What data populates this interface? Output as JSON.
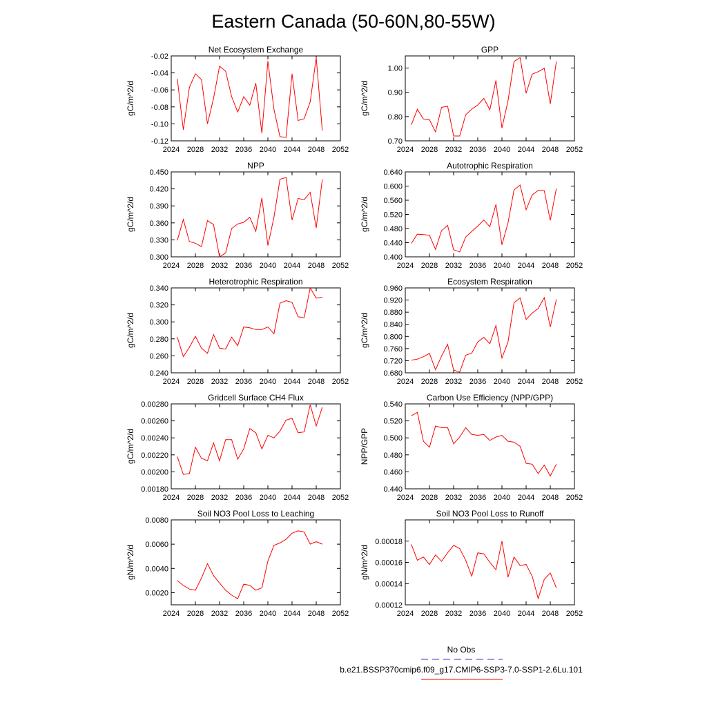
{
  "title": "Eastern Canada (50-60N,80-55W)",
  "colors": {
    "series": "#ff0000",
    "obs": "#3333cc",
    "axis": "#000000"
  },
  "legend": [
    {
      "label": "No Obs",
      "style": "dashed",
      "color": "#3333cc"
    },
    {
      "label": "b.e21.BSSP370cmip6.f09_g17.CMIP6-SSP3-7.0-SSP1-2.6Lu.101",
      "style": "solid",
      "color": "#ff0000"
    }
  ],
  "chart_data": [
    {
      "type": "line",
      "title": "Net Ecosystem Exchange",
      "ylabel": "gC/m^2/d",
      "xlim": [
        2024,
        2052
      ],
      "xticks": [
        2024,
        2028,
        2032,
        2036,
        2040,
        2044,
        2048,
        2052
      ],
      "ylim": [
        -0.12,
        -0.02
      ],
      "yticks": [
        "-0.12",
        "-0.10",
        "-0.08",
        "-0.06",
        "-0.04",
        "-0.02"
      ],
      "x": [
        2025,
        2026,
        2027,
        2028,
        2029,
        2030,
        2031,
        2032,
        2033,
        2034,
        2035,
        2036,
        2037,
        2038,
        2039,
        2040,
        2041,
        2042,
        2043,
        2044,
        2045,
        2046,
        2047,
        2048,
        2049
      ],
      "values": [
        -0.047,
        -0.107,
        -0.057,
        -0.041,
        -0.048,
        -0.1,
        -0.07,
        -0.032,
        -0.038,
        -0.068,
        -0.086,
        -0.068,
        -0.078,
        -0.052,
        -0.111,
        -0.026,
        -0.083,
        -0.115,
        -0.116,
        -0.041,
        -0.096,
        -0.094,
        -0.074,
        -0.022,
        -0.108
      ]
    },
    {
      "type": "line",
      "title": "GPP",
      "ylabel": "gC/m^2/d",
      "xlim": [
        2024,
        2052
      ],
      "xticks": [
        2024,
        2028,
        2032,
        2036,
        2040,
        2044,
        2048,
        2052
      ],
      "ylim": [
        0.7,
        1.05
      ],
      "yticks": [
        "0.70",
        "0.80",
        "0.90",
        "1.00"
      ],
      "x": [
        2025,
        2026,
        2027,
        2028,
        2029,
        2030,
        2031,
        2032,
        2033,
        2034,
        2035,
        2036,
        2037,
        2038,
        2039,
        2040,
        2041,
        2042,
        2043,
        2044,
        2045,
        2046,
        2047,
        2048,
        2049
      ],
      "values": [
        0.766,
        0.83,
        0.79,
        0.787,
        0.737,
        0.838,
        0.843,
        0.72,
        0.72,
        0.807,
        0.831,
        0.848,
        0.875,
        0.828,
        0.949,
        0.753,
        0.865,
        1.027,
        1.043,
        0.896,
        0.975,
        0.985,
        0.999,
        0.852,
        1.027
      ]
    },
    {
      "type": "line",
      "title": "NPP",
      "ylabel": "gC/m^2/d",
      "xlim": [
        2024,
        2052
      ],
      "xticks": [
        2024,
        2028,
        2032,
        2036,
        2040,
        2044,
        2048,
        2052
      ],
      "ylim": [
        0.3,
        0.45
      ],
      "yticks": [
        "0.300",
        "0.330",
        "0.360",
        "0.390",
        "0.420",
        "0.450"
      ],
      "x": [
        2025,
        2026,
        2027,
        2028,
        2029,
        2030,
        2031,
        2032,
        2033,
        2034,
        2035,
        2036,
        2037,
        2038,
        2039,
        2040,
        2041,
        2042,
        2043,
        2044,
        2045,
        2046,
        2047,
        2048,
        2049
      ],
      "values": [
        0.329,
        0.366,
        0.327,
        0.324,
        0.318,
        0.364,
        0.357,
        0.3,
        0.307,
        0.35,
        0.358,
        0.361,
        0.37,
        0.345,
        0.404,
        0.32,
        0.37,
        0.437,
        0.44,
        0.365,
        0.403,
        0.401,
        0.414,
        0.351,
        0.437
      ]
    },
    {
      "type": "line",
      "title": "Autotrophic Respiration",
      "ylabel": "gC/m^2/d",
      "xlim": [
        2024,
        2052
      ],
      "xticks": [
        2024,
        2028,
        2032,
        2036,
        2040,
        2044,
        2048,
        2052
      ],
      "ylim": [
        0.4,
        0.64
      ],
      "yticks": [
        "0.400",
        "0.440",
        "0.480",
        "0.520",
        "0.560",
        "0.600",
        "0.640"
      ],
      "x": [
        2025,
        2026,
        2027,
        2028,
        2029,
        2030,
        2031,
        2032,
        2033,
        2034,
        2035,
        2036,
        2037,
        2038,
        2039,
        2040,
        2041,
        2042,
        2043,
        2044,
        2045,
        2046,
        2047,
        2048,
        2049
      ],
      "values": [
        0.438,
        0.464,
        0.463,
        0.461,
        0.421,
        0.474,
        0.489,
        0.42,
        0.414,
        0.456,
        0.472,
        0.487,
        0.504,
        0.485,
        0.548,
        0.434,
        0.496,
        0.589,
        0.603,
        0.533,
        0.575,
        0.588,
        0.587,
        0.503,
        0.593
      ]
    },
    {
      "type": "line",
      "title": "Heterotrophic Respiration",
      "ylabel": "gC/m^2/d",
      "xlim": [
        2024,
        2052
      ],
      "xticks": [
        2024,
        2028,
        2032,
        2036,
        2040,
        2044,
        2048,
        2052
      ],
      "ylim": [
        0.24,
        0.34
      ],
      "yticks": [
        "0.240",
        "0.260",
        "0.280",
        "0.300",
        "0.320",
        "0.340"
      ],
      "x": [
        2025,
        2026,
        2027,
        2028,
        2029,
        2030,
        2031,
        2032,
        2033,
        2034,
        2035,
        2036,
        2037,
        2038,
        2039,
        2040,
        2041,
        2042,
        2043,
        2044,
        2045,
        2046,
        2047,
        2048,
        2049
      ],
      "values": [
        0.282,
        0.259,
        0.27,
        0.283,
        0.269,
        0.263,
        0.285,
        0.269,
        0.268,
        0.282,
        0.272,
        0.294,
        0.293,
        0.291,
        0.291,
        0.294,
        0.286,
        0.322,
        0.325,
        0.323,
        0.306,
        0.305,
        0.34,
        0.328,
        0.329
      ]
    },
    {
      "type": "line",
      "title": "Ecosystem Respiration",
      "ylabel": "gC/m^2/d",
      "xlim": [
        2024,
        2052
      ],
      "xticks": [
        2024,
        2028,
        2032,
        2036,
        2040,
        2044,
        2048,
        2052
      ],
      "ylim": [
        0.68,
        0.96
      ],
      "yticks": [
        "0.680",
        "0.720",
        "0.760",
        "0.800",
        "0.840",
        "0.880",
        "0.920",
        "0.960"
      ],
      "x": [
        2025,
        2026,
        2027,
        2028,
        2029,
        2030,
        2031,
        2032,
        2033,
        2034,
        2035,
        2036,
        2037,
        2038,
        2039,
        2040,
        2041,
        2042,
        2043,
        2044,
        2045,
        2046,
        2047,
        2048,
        2049
      ],
      "values": [
        0.722,
        0.725,
        0.733,
        0.744,
        0.69,
        0.735,
        0.774,
        0.689,
        0.682,
        0.738,
        0.745,
        0.782,
        0.797,
        0.776,
        0.836,
        0.729,
        0.782,
        0.911,
        0.927,
        0.856,
        0.877,
        0.892,
        0.928,
        0.831,
        0.922
      ]
    },
    {
      "type": "line",
      "title": "Gridcell Surface CH4 Flux",
      "ylabel": "gC/m^2/d",
      "xlim": [
        2024,
        2052
      ],
      "xticks": [
        2024,
        2028,
        2032,
        2036,
        2040,
        2044,
        2048,
        2052
      ],
      "ylim": [
        0.0018,
        0.0028
      ],
      "yticks": [
        "0.00180",
        "0.00200",
        "0.00220",
        "0.00240",
        "0.00260",
        "0.00280"
      ],
      "x": [
        2025,
        2026,
        2027,
        2028,
        2029,
        2030,
        2031,
        2032,
        2033,
        2034,
        2035,
        2036,
        2037,
        2038,
        2039,
        2040,
        2041,
        2042,
        2043,
        2044,
        2045,
        2046,
        2047,
        2048,
        2049
      ],
      "values": [
        0.00218,
        0.00197,
        0.00198,
        0.00229,
        0.00216,
        0.00213,
        0.00234,
        0.00213,
        0.00238,
        0.00238,
        0.00215,
        0.00227,
        0.00251,
        0.00246,
        0.00227,
        0.00243,
        0.0024,
        0.00248,
        0.00261,
        0.00263,
        0.00246,
        0.00247,
        0.00279,
        0.00254,
        0.00276
      ]
    },
    {
      "type": "line",
      "title": "Carbon Use Efficiency (NPP/GPP)",
      "ylabel": "NPP/GPP",
      "xlim": [
        2024,
        2052
      ],
      "xticks": [
        2024,
        2028,
        2032,
        2036,
        2040,
        2044,
        2048,
        2052
      ],
      "ylim": [
        0.44,
        0.54
      ],
      "yticks": [
        "0.440",
        "0.460",
        "0.480",
        "0.500",
        "0.520",
        "0.540"
      ],
      "x": [
        2025,
        2026,
        2027,
        2028,
        2029,
        2030,
        2031,
        2032,
        2033,
        2034,
        2035,
        2036,
        2037,
        2038,
        2039,
        2040,
        2041,
        2042,
        2043,
        2044,
        2045,
        2046,
        2047,
        2048,
        2049
      ],
      "values": [
        0.526,
        0.53,
        0.496,
        0.489,
        0.514,
        0.512,
        0.512,
        0.493,
        0.501,
        0.512,
        0.504,
        0.503,
        0.504,
        0.497,
        0.501,
        0.503,
        0.496,
        0.495,
        0.49,
        0.47,
        0.469,
        0.458,
        0.468,
        0.455,
        0.469
      ]
    },
    {
      "type": "line",
      "title": "Soil NO3 Pool Loss to Leaching",
      "ylabel": "gN/m^2/d",
      "xlim": [
        2024,
        2052
      ],
      "xticks": [
        2024,
        2028,
        2032,
        2036,
        2040,
        2044,
        2048,
        2052
      ],
      "ylim": [
        0.001,
        0.008
      ],
      "yticks": [
        "0.0020",
        "0.0040",
        "0.0060",
        "0.0080"
      ],
      "x": [
        2025,
        2026,
        2027,
        2028,
        2029,
        2030,
        2031,
        2032,
        2033,
        2034,
        2035,
        2036,
        2037,
        2038,
        2039,
        2040,
        2041,
        2042,
        2043,
        2044,
        2045,
        2046,
        2047,
        2048,
        2049
      ],
      "values": [
        0.003,
        0.0026,
        0.0023,
        0.0022,
        0.0032,
        0.0044,
        0.0034,
        0.0028,
        0.0022,
        0.0018,
        0.0015,
        0.0027,
        0.0026,
        0.0022,
        0.0024,
        0.0046,
        0.0059,
        0.0061,
        0.0064,
        0.0069,
        0.0071,
        0.007,
        0.006,
        0.0062,
        0.006
      ]
    },
    {
      "type": "line",
      "title": "Soil NO3 Pool Loss to Runoff",
      "ylabel": "gN/m^2/d",
      "xlim": [
        2024,
        2052
      ],
      "xticks": [
        2024,
        2028,
        2032,
        2036,
        2040,
        2044,
        2048,
        2052
      ],
      "ylim": [
        0.00012,
        0.0002
      ],
      "yticks": [
        "0.00012",
        "0.00014",
        "0.00016",
        "0.00018"
      ],
      "x": [
        2025,
        2026,
        2027,
        2028,
        2029,
        2030,
        2031,
        2032,
        2033,
        2034,
        2035,
        2036,
        2037,
        2038,
        2039,
        2040,
        2041,
        2042,
        2043,
        2044,
        2045,
        2046,
        2047,
        2048,
        2049
      ],
      "values": [
        0.000177,
        0.000162,
        0.000165,
        0.000158,
        0.000167,
        0.000161,
        0.000169,
        0.000176,
        0.000173,
        0.000162,
        0.000147,
        0.000169,
        0.000168,
        0.00016,
        0.000153,
        0.00018,
        0.000146,
        0.000165,
        0.000157,
        0.000158,
        0.000147,
        0.000126,
        0.000144,
        0.00015,
        0.000136
      ]
    }
  ]
}
